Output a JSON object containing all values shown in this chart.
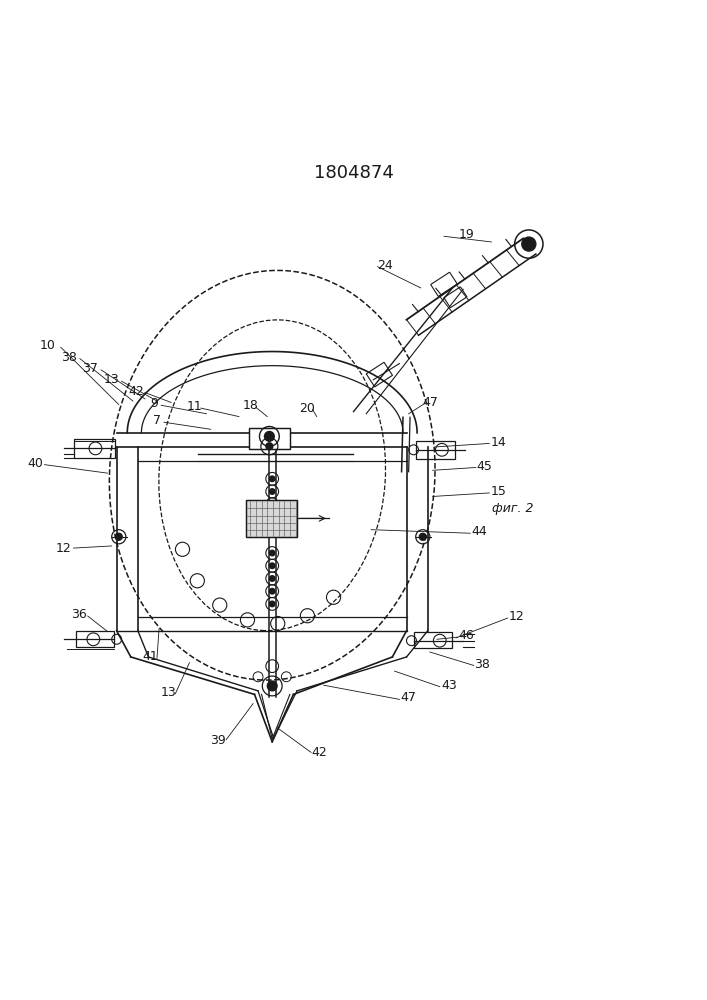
{
  "title": "1804874",
  "fig_color": "#ffffff",
  "line_color": "#1a1a1a",
  "line_width": 0.9,
  "label_fontsize": 9,
  "fig2_label": "фиг. 2"
}
